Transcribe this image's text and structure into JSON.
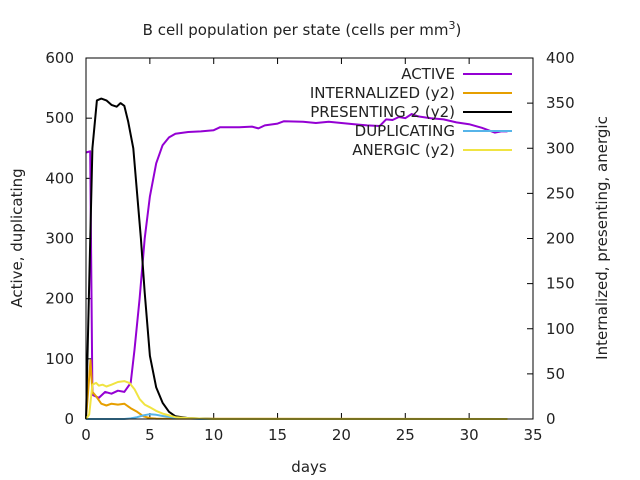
{
  "chart_data": {
    "type": "line",
    "title": "B cell population  per state (cells per mm",
    "title_superscript": "3",
    "title_suffix": ")",
    "xlabel": "days",
    "ylabel": "Active, duplicating",
    "y2label": "Internalized, presenting, anergic",
    "xlim": [
      0,
      35
    ],
    "ylim": [
      0,
      600
    ],
    "y2lim": [
      0,
      400
    ],
    "xticks": [
      "0",
      "5",
      "10",
      "15",
      "20",
      "25",
      "30",
      "35"
    ],
    "yticks": [
      "0",
      "100",
      "200",
      "300",
      "400",
      "500",
      "600"
    ],
    "y2ticks": [
      "0",
      "50",
      "100",
      "150",
      "200",
      "250",
      "300",
      "350",
      "400"
    ],
    "grid": false,
    "legend_position": "top-right",
    "series": [
      {
        "name": "ACTIVE",
        "axis": "y",
        "color": "#9400d3",
        "points": [
          [
            0,
            443
          ],
          [
            0.33,
            445
          ],
          [
            0.5,
            40
          ],
          [
            1,
            35
          ],
          [
            1.5,
            45
          ],
          [
            2,
            42
          ],
          [
            2.5,
            47
          ],
          [
            3,
            45
          ],
          [
            3.5,
            60
          ],
          [
            3.8,
            115
          ],
          [
            4.2,
            200
          ],
          [
            4.6,
            300
          ],
          [
            5,
            370
          ],
          [
            5.5,
            425
          ],
          [
            6,
            455
          ],
          [
            6.5,
            468
          ],
          [
            7,
            474
          ],
          [
            8,
            477
          ],
          [
            9,
            478
          ],
          [
            10,
            480
          ],
          [
            10.5,
            485
          ],
          [
            12,
            485
          ],
          [
            13,
            486
          ],
          [
            13.5,
            483
          ],
          [
            14,
            488
          ],
          [
            15,
            491
          ],
          [
            15.5,
            495
          ],
          [
            17,
            494
          ],
          [
            18,
            492
          ],
          [
            19,
            494
          ],
          [
            20,
            492
          ],
          [
            21,
            490
          ],
          [
            22,
            488
          ],
          [
            23,
            487
          ],
          [
            23.5,
            498
          ],
          [
            24,
            497
          ],
          [
            24.5,
            502
          ],
          [
            25,
            500
          ],
          [
            25.5,
            507
          ],
          [
            26,
            503
          ],
          [
            27,
            500
          ],
          [
            28,
            498
          ],
          [
            29,
            493
          ],
          [
            30,
            490
          ],
          [
            31,
            484
          ],
          [
            32,
            476
          ],
          [
            32.5,
            478
          ],
          [
            33,
            478
          ]
        ]
      },
      {
        "name": "INTERNALIZED (y2)",
        "axis": "y2",
        "color": "#e69f00",
        "points": [
          [
            0,
            0
          ],
          [
            0.35,
            65
          ],
          [
            0.5,
            30
          ],
          [
            0.8,
            25
          ],
          [
            1.2,
            17
          ],
          [
            1.6,
            15
          ],
          [
            2,
            17
          ],
          [
            2.5,
            16
          ],
          [
            3,
            17
          ],
          [
            3.5,
            12
          ],
          [
            4,
            8
          ],
          [
            4.5,
            3
          ],
          [
            5,
            1
          ],
          [
            5.5,
            0.4
          ],
          [
            33,
            0
          ]
        ]
      },
      {
        "name": "PRESENTING 2 (y2)",
        "axis": "y2",
        "color": "#000000",
        "points": [
          [
            0,
            0
          ],
          [
            0.5,
            300
          ],
          [
            0.85,
            353
          ],
          [
            1.2,
            355
          ],
          [
            1.6,
            353
          ],
          [
            2,
            348
          ],
          [
            2.4,
            346
          ],
          [
            2.7,
            350
          ],
          [
            3,
            347
          ],
          [
            3.3,
            330
          ],
          [
            3.7,
            300
          ],
          [
            4,
            250
          ],
          [
            4.3,
            200
          ],
          [
            4.6,
            140
          ],
          [
            5,
            70
          ],
          [
            5.5,
            35
          ],
          [
            6,
            18
          ],
          [
            6.5,
            8
          ],
          [
            7,
            3
          ],
          [
            8,
            1
          ],
          [
            10,
            0
          ],
          [
            33,
            0
          ]
        ]
      },
      {
        "name": "DUPLICATING",
        "axis": "y",
        "color": "#56b4e9",
        "points": [
          [
            0,
            0
          ],
          [
            3,
            0
          ],
          [
            3.5,
            1
          ],
          [
            4,
            3
          ],
          [
            4.5,
            6
          ],
          [
            5,
            8
          ],
          [
            5.5,
            7
          ],
          [
            6,
            5
          ],
          [
            7,
            2
          ],
          [
            8,
            1
          ],
          [
            9,
            0
          ],
          [
            33,
            0
          ]
        ]
      },
      {
        "name": "ANERGIC (y2)",
        "axis": "y2",
        "color": "#f0e442",
        "points": [
          [
            0,
            0
          ],
          [
            0.25,
            5
          ],
          [
            0.5,
            38
          ],
          [
            0.8,
            40
          ],
          [
            1,
            37
          ],
          [
            1.3,
            38
          ],
          [
            1.6,
            36
          ],
          [
            2,
            38
          ],
          [
            2.5,
            41
          ],
          [
            3,
            42
          ],
          [
            3.4,
            40
          ],
          [
            3.8,
            33
          ],
          [
            4.2,
            22
          ],
          [
            4.6,
            16
          ],
          [
            5,
            13
          ],
          [
            5.5,
            9
          ],
          [
            6,
            6
          ],
          [
            6.5,
            4
          ],
          [
            7,
            2
          ],
          [
            8,
            1
          ],
          [
            10,
            0
          ],
          [
            33,
            0
          ]
        ]
      }
    ]
  }
}
